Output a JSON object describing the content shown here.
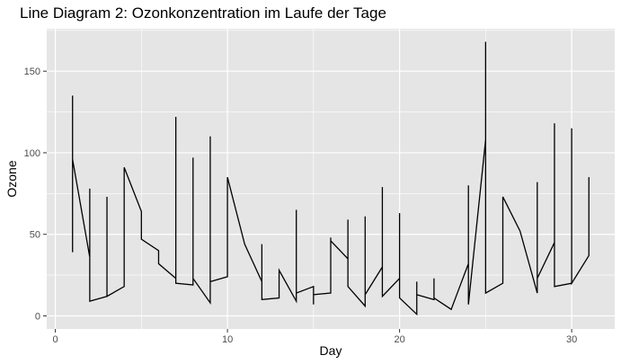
{
  "chart_data": {
    "type": "line",
    "title": "Line Diagram 2: Ozonkonzentration im Laufe der Tage",
    "xlabel": "Day",
    "ylabel": "Ozone",
    "xlim": [
      -0.5,
      32.5
    ],
    "ylim": [
      -8,
      176
    ],
    "x_ticks": [
      0,
      10,
      20,
      30
    ],
    "x_tick_labels": [
      "0",
      "10",
      "20",
      "30"
    ],
    "y_ticks": [
      0,
      50,
      100,
      150
    ],
    "y_tick_labels": [
      "0",
      "50",
      "100",
      "150"
    ],
    "grid": true,
    "panel_background": "#e5e5e5",
    "grid_color": "#ffffff",
    "line_color": "#000000",
    "series": [
      {
        "x": [
          1,
          1,
          1,
          2,
          2,
          2,
          3,
          3,
          3,
          4,
          4,
          5,
          5,
          6,
          6,
          7,
          7,
          7,
          8,
          8,
          8,
          9,
          9,
          9,
          10,
          10,
          11,
          12,
          12,
          12,
          13,
          13,
          14,
          14,
          14,
          15,
          15,
          15,
          16,
          16,
          16,
          17,
          17,
          17,
          18,
          18,
          18,
          19,
          19,
          19,
          20,
          20,
          20,
          21,
          21,
          21,
          22,
          22,
          22,
          23,
          24,
          24,
          24,
          25,
          25,
          25,
          26,
          26,
          27,
          28,
          28,
          28,
          29,
          29,
          29,
          30,
          30,
          30,
          31,
          31
        ],
        "y": [
          39,
          135,
          96,
          36,
          78,
          9,
          12,
          73,
          12,
          18,
          91,
          64,
          47,
          40,
          32,
          23,
          122,
          20,
          19,
          97,
          23,
          8,
          110,
          21,
          24,
          85,
          44,
          21,
          44,
          10,
          11,
          28,
          9,
          65,
          14,
          18,
          7,
          13,
          14,
          48,
          46,
          35,
          59,
          18,
          6,
          61,
          13,
          30,
          79,
          12,
          23,
          63,
          11,
          1,
          21,
          13,
          10,
          23,
          11,
          4,
          32,
          80,
          7,
          108,
          168,
          14,
          20,
          73,
          52,
          14,
          82,
          23,
          45,
          118,
          18,
          20,
          115,
          20,
          37,
          85
        ]
      }
    ]
  }
}
